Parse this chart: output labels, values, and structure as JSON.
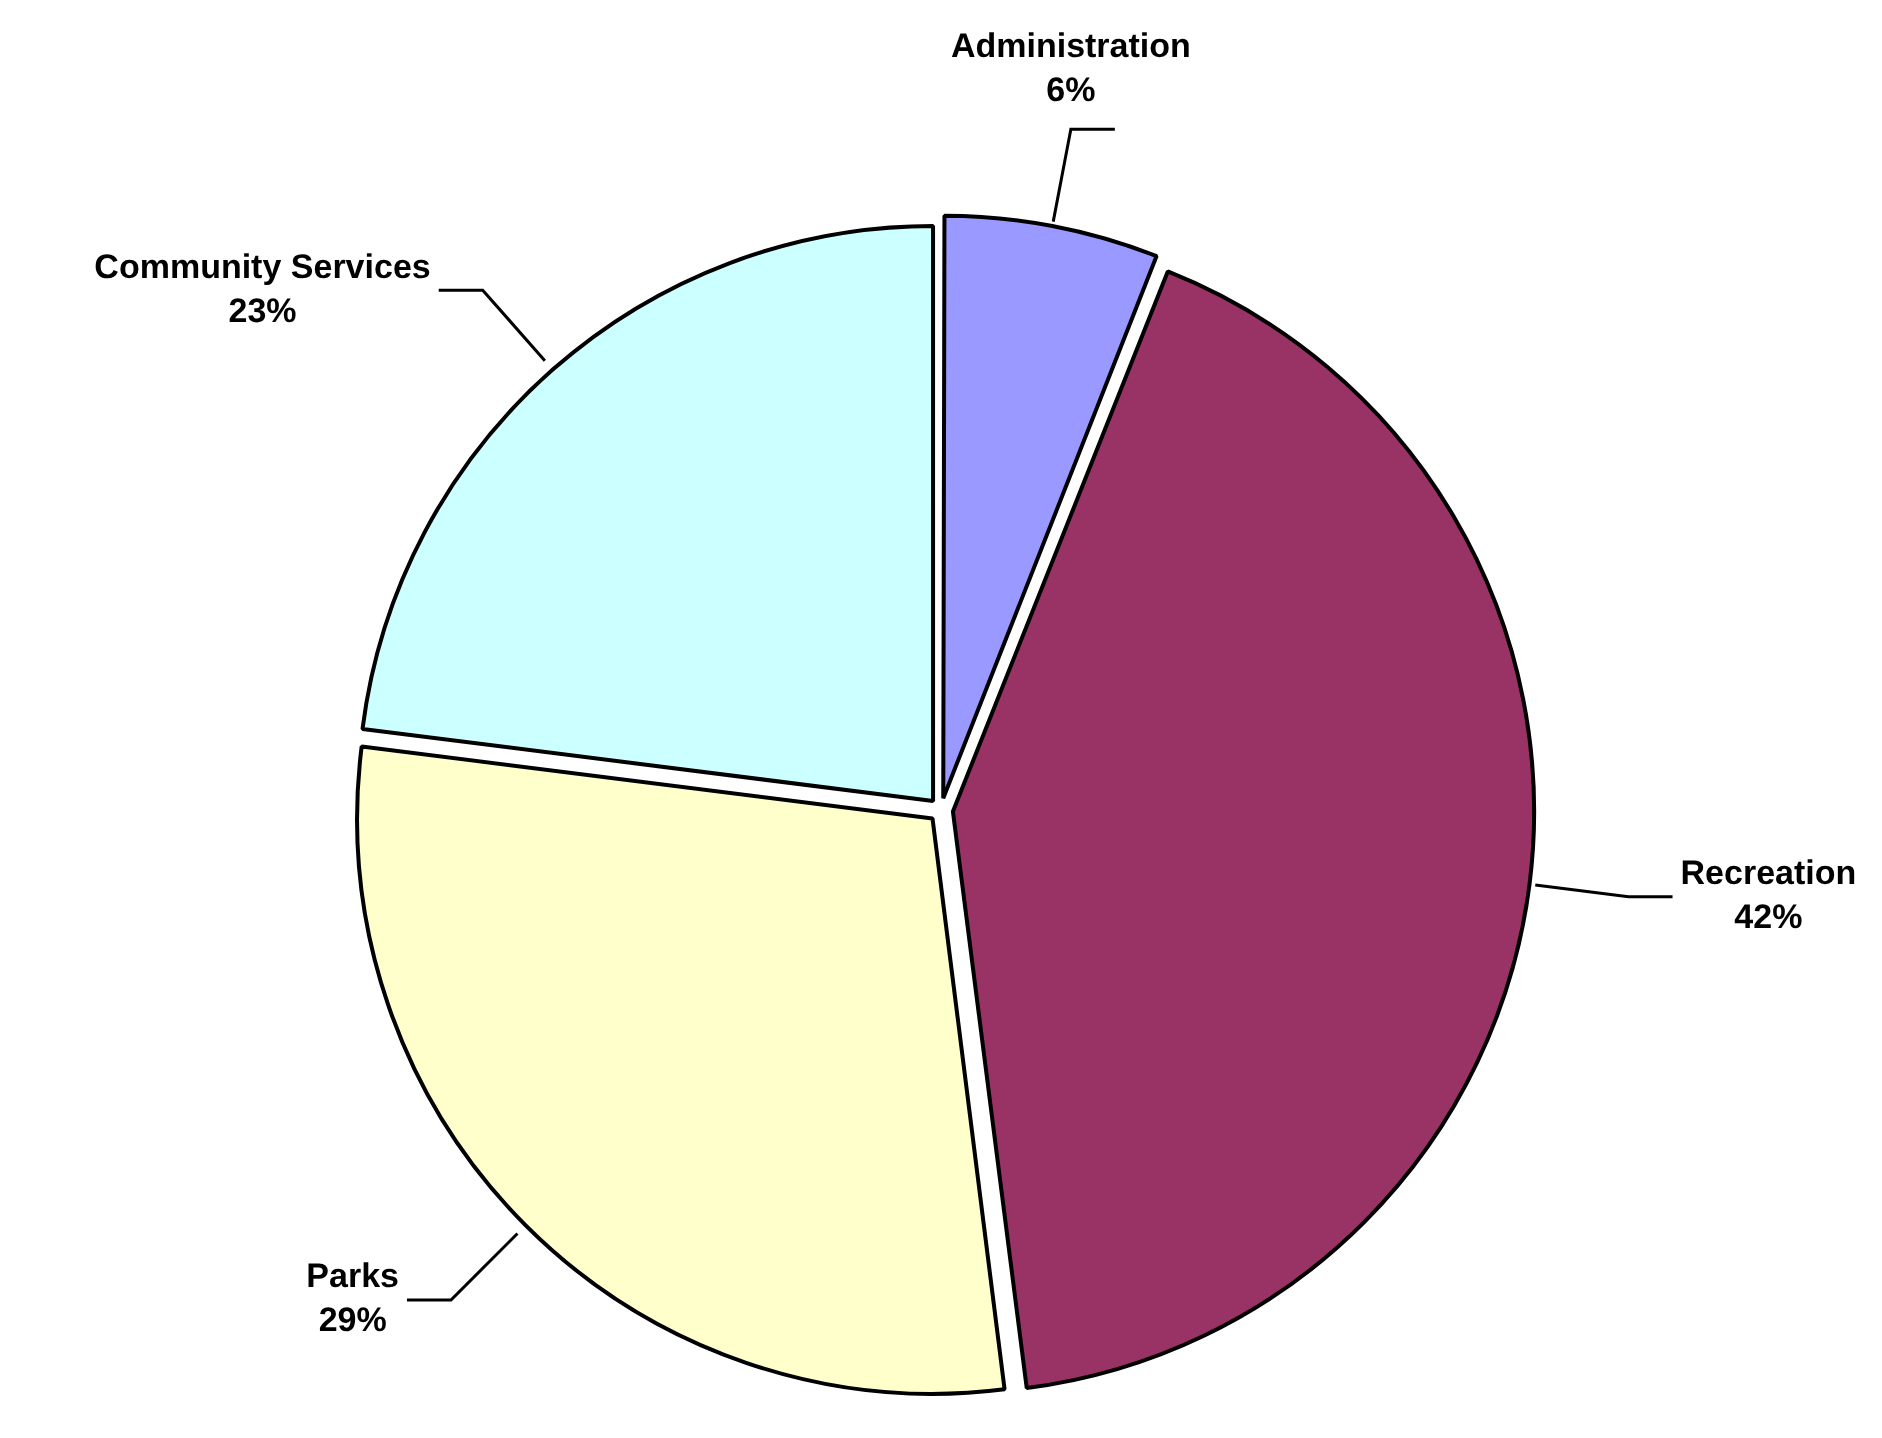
{
  "chart_data": {
    "type": "pie",
    "categories": [
      "Administration",
      "Recreation",
      "Parks",
      "Community Services"
    ],
    "values": [
      6,
      42,
      29,
      23
    ],
    "value_labels": [
      "6%",
      "42%",
      "29%",
      "23%"
    ],
    "colors": [
      "#9999ff",
      "#993366",
      "#ffffcc",
      "#ccffff"
    ],
    "legend": false
  }
}
